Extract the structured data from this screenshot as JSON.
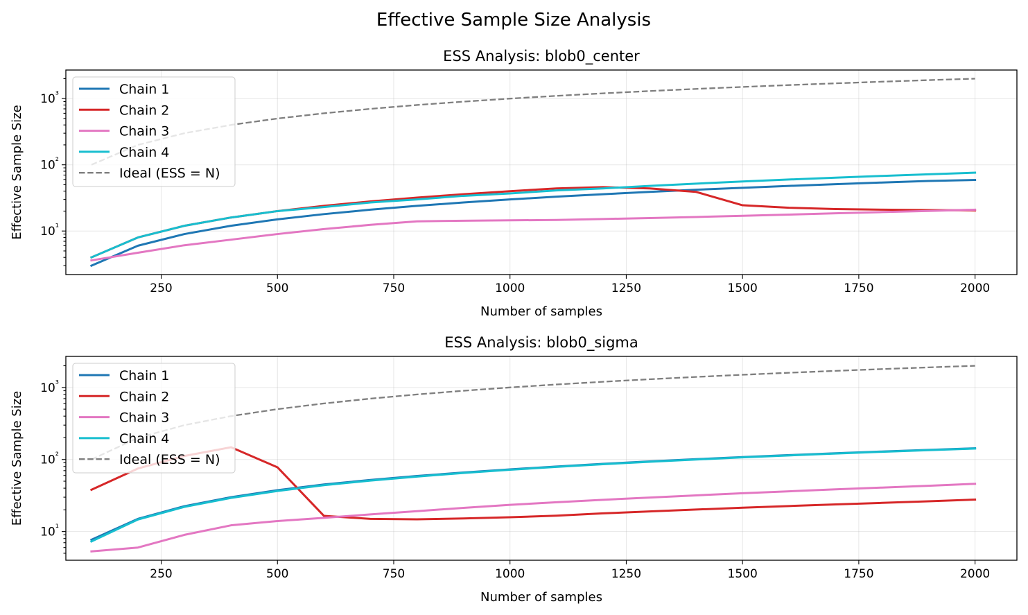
{
  "figure": {
    "suptitle": "Effective Sample Size Analysis"
  },
  "chart_data": [
    {
      "type": "line",
      "title": "ESS Analysis: blob0_center",
      "xlabel": "Number of samples",
      "ylabel": "Effective Sample Size",
      "yscale": "log",
      "xlim": [
        45,
        2090
      ],
      "ylim": [
        2.2,
        2700
      ],
      "grid": true,
      "legend_position": "upper-left",
      "x_ticks": [
        250,
        500,
        750,
        1000,
        1250,
        1500,
        1750,
        2000
      ],
      "y_ticks": [
        10,
        100,
        1000
      ],
      "y_tick_labels": [
        "10¹",
        "10²",
        "10³"
      ],
      "x": [
        100,
        200,
        300,
        400,
        500,
        600,
        700,
        800,
        900,
        1000,
        1100,
        1200,
        1300,
        1400,
        1500,
        1600,
        1700,
        1800,
        1900,
        2000
      ],
      "series": [
        {
          "name": "Chain 1",
          "color": "#1f77b4",
          "dashed": false,
          "values": [
            3,
            6,
            9,
            12,
            15,
            18,
            21,
            24,
            27,
            30,
            33,
            36,
            39,
            42,
            45,
            48,
            51,
            54,
            57,
            59
          ]
        },
        {
          "name": "Chain 2",
          "color": "#d62728",
          "dashed": false,
          "values": [
            4,
            8,
            12,
            16,
            20,
            24,
            28,
            32,
            36,
            40,
            44,
            46,
            44,
            39,
            24.5,
            22.5,
            21.5,
            21,
            20.7,
            20.5
          ]
        },
        {
          "name": "Chain 3",
          "color": "#e377c2",
          "dashed": false,
          "values": [
            3.6,
            4.7,
            6.1,
            7.4,
            9,
            10.7,
            12.4,
            14,
            14.3,
            14.5,
            14.7,
            15.2,
            15.7,
            16.3,
            17,
            17.7,
            18.5,
            19.3,
            20.1,
            21
          ]
        },
        {
          "name": "Chain 4",
          "color": "#17becf",
          "dashed": false,
          "values": [
            4,
            8,
            12,
            16,
            20,
            23,
            27,
            30,
            34,
            37,
            41,
            44,
            48,
            52,
            56,
            60,
            64,
            68,
            72,
            76
          ]
        },
        {
          "name": "Ideal (ESS = N)",
          "color": "#7f7f7f",
          "dashed": true,
          "values": [
            100,
            200,
            300,
            400,
            500,
            600,
            700,
            800,
            900,
            1000,
            1100,
            1200,
            1300,
            1400,
            1500,
            1600,
            1700,
            1800,
            1900,
            2000
          ]
        }
      ]
    },
    {
      "type": "line",
      "title": "ESS Analysis: blob0_sigma",
      "xlabel": "Number of samples",
      "ylabel": "Effective Sample Size",
      "yscale": "log",
      "xlim": [
        45,
        2090
      ],
      "ylim": [
        4,
        2700
      ],
      "grid": true,
      "legend_position": "upper-left",
      "x_ticks": [
        250,
        500,
        750,
        1000,
        1250,
        1500,
        1750,
        2000
      ],
      "y_ticks": [
        10,
        100,
        1000
      ],
      "y_tick_labels": [
        "10¹",
        "10²",
        "10³"
      ],
      "x": [
        100,
        200,
        300,
        400,
        500,
        600,
        700,
        800,
        900,
        1000,
        1100,
        1200,
        1300,
        1400,
        1500,
        1600,
        1700,
        1800,
        1900,
        2000
      ],
      "series": [
        {
          "name": "Chain 1",
          "color": "#1f77b4",
          "dashed": false,
          "values": [
            7.7,
            15,
            22.5,
            30,
            37.5,
            45,
            52,
            59,
            66,
            73,
            80,
            87,
            94,
            101,
            108,
            115,
            122,
            129,
            136,
            143
          ]
        },
        {
          "name": "Chain 2",
          "color": "#d62728",
          "dashed": false,
          "values": [
            38,
            75,
            112,
            148,
            78,
            16.5,
            15,
            14.8,
            15.2,
            15.8,
            16.6,
            17.9,
            19,
            20.2,
            21.4,
            22.6,
            23.8,
            25,
            26.3,
            27.8
          ]
        },
        {
          "name": "Chain 3",
          "color": "#e377c2",
          "dashed": false,
          "values": [
            5.3,
            6,
            9,
            12.2,
            14,
            15.5,
            17.3,
            19.2,
            21.3,
            23.5,
            25.5,
            27.6,
            29.6,
            31.8,
            34,
            36.2,
            38.5,
            40.8,
            43.2,
            46
          ]
        },
        {
          "name": "Chain 4",
          "color": "#17becf",
          "dashed": false,
          "values": [
            7.3,
            14.7,
            22,
            29.3,
            36.6,
            44,
            51,
            58,
            65,
            72,
            79,
            86,
            93,
            100,
            107,
            114,
            121,
            128,
            135,
            142
          ]
        },
        {
          "name": "Ideal (ESS = N)",
          "color": "#7f7f7f",
          "dashed": true,
          "values": [
            100,
            200,
            300,
            400,
            500,
            600,
            700,
            800,
            900,
            1000,
            1100,
            1200,
            1300,
            1400,
            1500,
            1600,
            1700,
            1800,
            1900,
            2000
          ]
        }
      ]
    }
  ]
}
